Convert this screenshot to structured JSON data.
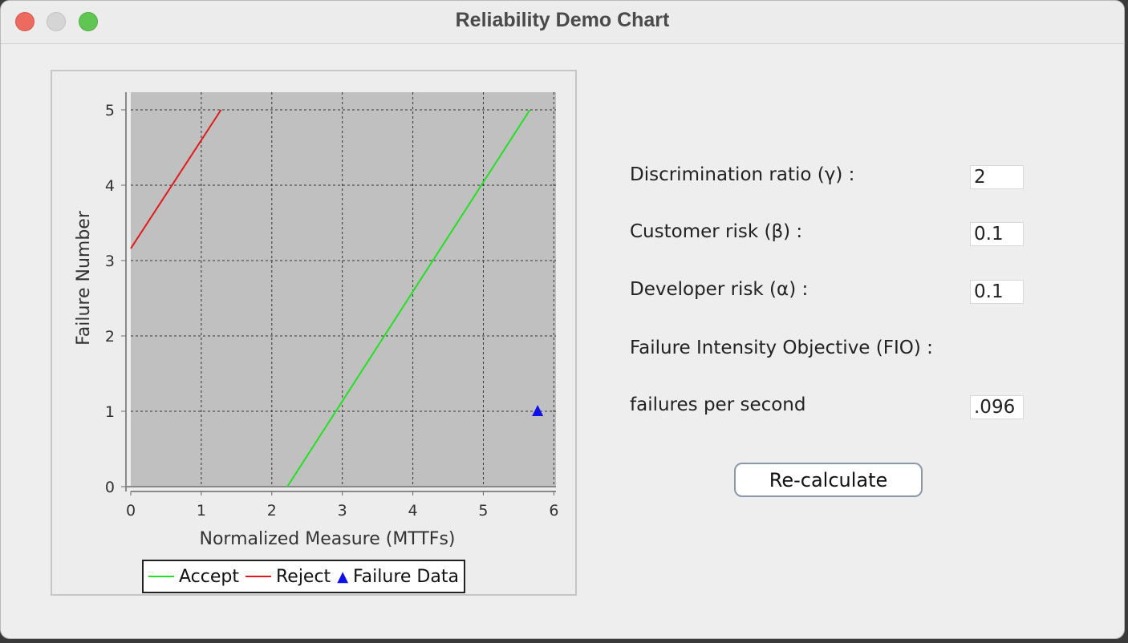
{
  "window": {
    "title": "Reliability Demo Chart"
  },
  "chart_data": {
    "type": "line",
    "xlabel": "Normalized Measure (MTTFs)",
    "ylabel": "Failure Number",
    "xlim": [
      0,
      6
    ],
    "ylim": [
      0,
      5
    ],
    "xticks": [
      "0",
      "1",
      "2",
      "3",
      "4",
      "5",
      "6"
    ],
    "yticks": [
      "0",
      "1",
      "2",
      "3",
      "4",
      "5"
    ],
    "grid": true,
    "background": "#c0c0c0",
    "legend_position": "bottom",
    "series": [
      {
        "name": "Accept",
        "kind": "line",
        "color": "#22e022",
        "points": [
          [
            2.22,
            0
          ],
          [
            5.66,
            5
          ]
        ]
      },
      {
        "name": "Reject",
        "kind": "line",
        "color": "#e01a1a",
        "points": [
          [
            0,
            3.16
          ],
          [
            1.28,
            5
          ]
        ]
      },
      {
        "name": "Failure Data",
        "kind": "scatter",
        "marker": "triangle",
        "color": "#1010e8",
        "points": [
          [
            5.77,
            1
          ]
        ]
      }
    ]
  },
  "form": {
    "discrimination_label": "Discrimination ratio (γ) :",
    "discrimination_value": "2",
    "customer_label": "Customer risk (β) :",
    "customer_value": "0.1",
    "developer_label": "Developer risk (α) :",
    "developer_value": "0.1",
    "fio_label": "Failure Intensity Objective (FIO) :",
    "fps_label": "failures per second",
    "fps_value": ".096",
    "recalc_label": "Re-calculate"
  }
}
